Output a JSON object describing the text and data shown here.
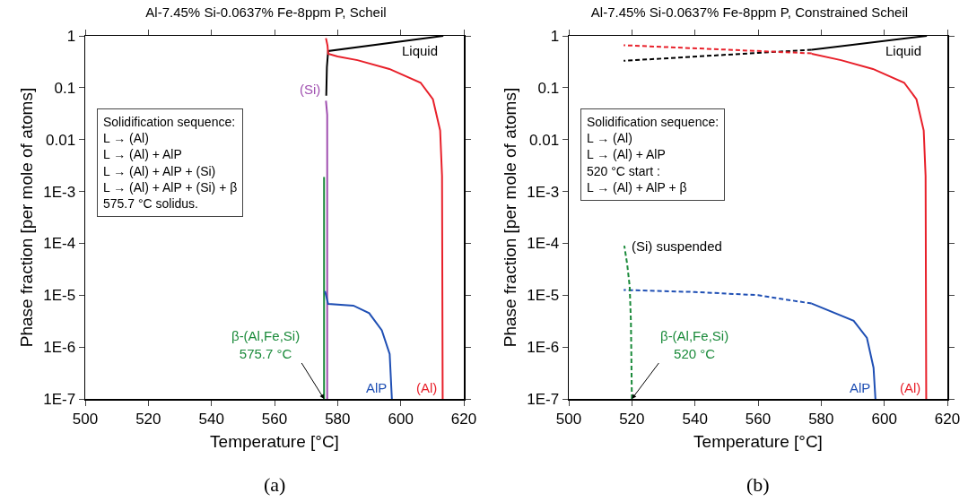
{
  "chart_data": [
    {
      "type": "line",
      "title": "Al-7.45% Si-0.0637% Fe-8ppm P, Scheil",
      "xlabel": "Temperature [°C]",
      "ylabel": "Phase fraction [per mole of atoms]",
      "log": "y",
      "grid": false,
      "marker": "none",
      "line_style": "solid",
      "xlim": [
        500,
        620
      ],
      "xticks": [
        500,
        520,
        540,
        560,
        580,
        600,
        620
      ],
      "ylim": [
        1e-07,
        1
      ],
      "yticks": [
        1,
        0.1,
        0.01,
        {
          "value": 0.001,
          "label": "1E-3"
        },
        {
          "value": 0.0001,
          "label": "1E-4"
        },
        {
          "value": 1e-05,
          "label": "1E-5"
        },
        {
          "value": 1e-06,
          "label": "1E-6"
        },
        {
          "value": 1e-07,
          "label": "1E-7"
        }
      ],
      "series": [
        {
          "name": "Liquid",
          "color": "#000000",
          "x": [
            613.5,
            577,
            576.6,
            576.4
          ],
          "values": [
            1,
            0.51,
            0.25,
            0.07
          ]
        },
        {
          "name": "(Al)",
          "color": "#e8202a",
          "x": [
            613.3,
            613.1,
            612.5,
            610.2,
            606.3,
            596.4,
            586.3,
            580,
            577,
            576.8,
            576.3
          ],
          "values": [
            1e-07,
            0.002,
            0.015,
            0.06,
            0.125,
            0.23,
            0.34,
            0.4,
            0.45,
            0.65,
            0.9
          ]
        },
        {
          "name": "(Si)",
          "color": "#a050b0",
          "x": [
            576.3,
            576.7,
            576.7
          ],
          "values": [
            0.056,
            0.03,
            1e-07
          ]
        },
        {
          "color": "#1a8a3a",
          "x": [
            575.7,
            575.7
          ],
          "values": [
            0.0019,
            1e-07
          ]
        },
        {
          "name": "AlP",
          "color": "#1f4fb4",
          "x": [
            597.2,
            596.5,
            594,
            590,
            585,
            577,
            576
          ],
          "values": [
            1e-07,
            7.3e-07,
            2.1e-06,
            4.5e-06,
            6.3e-06,
            6.8e-06,
            1.2e-05
          ]
        }
      ],
      "annotations": [
        "Solidification sequence:\nL → (Al)\nL → (Al) + AlP\nL → (Al) + AlP + (Si)\nL → (Al) + AlP + (Si) + β\n575.7 °C solidus.",
        {
          "text": "β-(Al,Fe,Si)\n575.7 °C",
          "x": 575.7,
          "y": 1e-07
        },
        "(a)"
      ]
    },
    {
      "type": "line",
      "title": "Al-7.45% Si-0.0637% Fe-8ppm P, Constrained Scheil",
      "xlabel": "Temperature [°C]",
      "ylabel": "Phase fraction [per mole of atoms]",
      "log": "y",
      "grid": false,
      "marker": "none",
      "line_style": "solid",
      "xlim": [
        500,
        620
      ],
      "xticks": [
        500,
        520,
        540,
        560,
        580,
        600,
        620
      ],
      "ylim": [
        1e-07,
        1
      ],
      "yticks": [
        1,
        0.1,
        0.01,
        {
          "value": 0.001,
          "label": "1E-3"
        },
        {
          "value": 0.0001,
          "label": "1E-4"
        },
        {
          "value": 1e-05,
          "label": "1E-5"
        },
        {
          "value": 1e-06,
          "label": "1E-6"
        },
        {
          "value": 1e-07,
          "label": "1E-7"
        }
      ],
      "series": [
        {
          "name": "Liquid",
          "color": "#000000",
          "x": [
            613.5,
            577
          ],
          "values": [
            1,
            0.54
          ]
        },
        {
          "color": "#000000",
          "line_style": "dashed",
          "x": [
            577,
            560,
            517.4
          ],
          "values": [
            0.54,
            0.47,
            0.33
          ]
        },
        {
          "name": "(Al)",
          "color": "#e8202a",
          "x": [
            613.3,
            613.1,
            612.5,
            610.2,
            606.3,
            596.4,
            586.3,
            577
          ],
          "values": [
            1e-07,
            0.002,
            0.015,
            0.06,
            0.125,
            0.23,
            0.34,
            0.45
          ]
        },
        {
          "color": "#e8202a",
          "line_style": "dashed",
          "x": [
            577,
            517.4
          ],
          "values": [
            0.46,
            0.66
          ]
        },
        {
          "name": "AlP",
          "color": "#1f4fb4",
          "x": [
            597.2,
            596.6,
            594.5,
            590.3,
            577
          ],
          "values": [
            1e-07,
            4e-07,
            1.5e-06,
            3.2e-06,
            6.9e-06
          ]
        },
        {
          "color": "#1f4fb4",
          "line_style": "dashed",
          "x": [
            577,
            560,
            540,
            517.4
          ],
          "values": [
            6.9e-06,
            1e-05,
            1.15e-05,
            1.26e-05
          ]
        },
        {
          "color": "#1a8a3a",
          "line_style": "dashed",
          "x": [
            520,
            519.7,
            519.3,
            518.5,
            517.6
          ],
          "values": [
            1e-07,
            3e-06,
            1.5e-05,
            4e-05,
            9e-05
          ]
        }
      ],
      "annotations": [
        "Solidification sequence:\nL → (Al)\nL → (Al) + AlP\n520 °C start :\nL → (Al) + AlP + β",
        {
          "text": "(Si) suspended",
          "x": 517.6,
          "y": 9e-05
        },
        {
          "text": "β-(Al,Fe,Si)\n520 °C",
          "x": 520,
          "y": 1e-07
        },
        "(b)"
      ]
    }
  ]
}
